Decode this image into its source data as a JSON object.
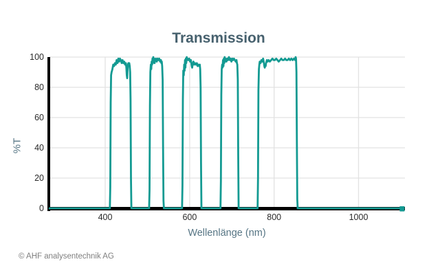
{
  "title": "Transmission",
  "y_axis_label": "%T",
  "x_axis_label": "Wellenlänge (nm)",
  "copyright": "© AHF analysentechnik AG",
  "colors": {
    "line": "#139a92",
    "title": "#47616e",
    "axis_label": "#567584",
    "tick_label": "#2a2a2a",
    "grid": "#e2e2e2",
    "axis_line": "#000000",
    "copyright": "#7f7f7f",
    "background": "#ffffff"
  },
  "chart_data": {
    "type": "line",
    "title": "Transmission",
    "xlabel": "Wellenlänge (nm)",
    "ylabel": "%T",
    "xlim": [
      268,
      1110
    ],
    "ylim": [
      0,
      100
    ],
    "x_ticks": [
      400,
      600,
      800,
      1000
    ],
    "y_ticks": [
      0,
      20,
      40,
      60,
      80,
      100
    ],
    "grid": true,
    "legend": false,
    "bands_nm": [
      [
        413,
        461
      ],
      [
        506,
        537
      ],
      [
        584,
        627
      ],
      [
        675,
        715
      ],
      [
        763,
        854
      ]
    ],
    "series": [
      {
        "name": "Transmission",
        "color": "#139a92",
        "points": [
          [
            268,
            0
          ],
          [
            300,
            0
          ],
          [
            340,
            0
          ],
          [
            380,
            0
          ],
          [
            405,
            0
          ],
          [
            411,
            0
          ],
          [
            412,
            14
          ],
          [
            413,
            70
          ],
          [
            414,
            88
          ],
          [
            415,
            90
          ],
          [
            417,
            92
          ],
          [
            419,
            95
          ],
          [
            421,
            94
          ],
          [
            423,
            96
          ],
          [
            425,
            95
          ],
          [
            427,
            98
          ],
          [
            429,
            96
          ],
          [
            431,
            99
          ],
          [
            433,
            97
          ],
          [
            435,
            99
          ],
          [
            437,
            98
          ],
          [
            439,
            96
          ],
          [
            441,
            98
          ],
          [
            443,
            96
          ],
          [
            445,
            97
          ],
          [
            447,
            95
          ],
          [
            449,
            96
          ],
          [
            450,
            93
          ],
          [
            451,
            88
          ],
          [
            452,
            86
          ],
          [
            453,
            92
          ],
          [
            454,
            95
          ],
          [
            455,
            96
          ],
          [
            456,
            95
          ],
          [
            457,
            96
          ],
          [
            458,
            94
          ],
          [
            459,
            90
          ],
          [
            460,
            72
          ],
          [
            461,
            20
          ],
          [
            462,
            0
          ],
          [
            470,
            0
          ],
          [
            485,
            0
          ],
          [
            504,
            0
          ],
          [
            505,
            12
          ],
          [
            506,
            68
          ],
          [
            507,
            90
          ],
          [
            508,
            95
          ],
          [
            509,
            92
          ],
          [
            510,
            97
          ],
          [
            511,
            95
          ],
          [
            512,
            99
          ],
          [
            513,
            96
          ],
          [
            514,
            100
          ],
          [
            515,
            97
          ],
          [
            516,
            99
          ],
          [
            517,
            96
          ],
          [
            518,
            98
          ],
          [
            520,
            99
          ],
          [
            522,
            97
          ],
          [
            524,
            99
          ],
          [
            526,
            98
          ],
          [
            528,
            99
          ],
          [
            530,
            97
          ],
          [
            532,
            98
          ],
          [
            533,
            96
          ],
          [
            534,
            97
          ],
          [
            535,
            94
          ],
          [
            536,
            85
          ],
          [
            537,
            40
          ],
          [
            538,
            5
          ],
          [
            539,
            0
          ],
          [
            550,
            0
          ],
          [
            565,
            0
          ],
          [
            582,
            0
          ],
          [
            583,
            15
          ],
          [
            584,
            72
          ],
          [
            585,
            91
          ],
          [
            586,
            88
          ],
          [
            587,
            95
          ],
          [
            588,
            91
          ],
          [
            589,
            98
          ],
          [
            590,
            93
          ],
          [
            591,
            99
          ],
          [
            592,
            96
          ],
          [
            593,
            100
          ],
          [
            594,
            98
          ],
          [
            595,
            99
          ],
          [
            597,
            98
          ],
          [
            599,
            99
          ],
          [
            601,
            97
          ],
          [
            603,
            98
          ],
          [
            605,
            94
          ],
          [
            606,
            93
          ],
          [
            607,
            95
          ],
          [
            609,
            97
          ],
          [
            611,
            95
          ],
          [
            613,
            96
          ],
          [
            615,
            95
          ],
          [
            617,
            96
          ],
          [
            619,
            94
          ],
          [
            621,
            95
          ],
          [
            623,
            94
          ],
          [
            624,
            95
          ],
          [
            625,
            92
          ],
          [
            626,
            80
          ],
          [
            627,
            30
          ],
          [
            628,
            0
          ],
          [
            640,
            0
          ],
          [
            655,
            0
          ],
          [
            673,
            0
          ],
          [
            674,
            18
          ],
          [
            675,
            75
          ],
          [
            676,
            92
          ],
          [
            677,
            95
          ],
          [
            678,
            93
          ],
          [
            679,
            98
          ],
          [
            680,
            94
          ],
          [
            681,
            99
          ],
          [
            682,
            96
          ],
          [
            683,
            100
          ],
          [
            684,
            97
          ],
          [
            685,
            99
          ],
          [
            687,
            97
          ],
          [
            689,
            99
          ],
          [
            691,
            98
          ],
          [
            693,
            100
          ],
          [
            695,
            98
          ],
          [
            697,
            99
          ],
          [
            699,
            97
          ],
          [
            701,
            99
          ],
          [
            703,
            98
          ],
          [
            705,
            99
          ],
          [
            707,
            98
          ],
          [
            709,
            97
          ],
          [
            711,
            98
          ],
          [
            712,
            96
          ],
          [
            713,
            95
          ],
          [
            714,
            85
          ],
          [
            715,
            35
          ],
          [
            716,
            0
          ],
          [
            728,
            0
          ],
          [
            745,
            0
          ],
          [
            761,
            0
          ],
          [
            762,
            20
          ],
          [
            763,
            78
          ],
          [
            764,
            92
          ],
          [
            765,
            95
          ],
          [
            766,
            97
          ],
          [
            768,
            96
          ],
          [
            770,
            98
          ],
          [
            772,
            97
          ],
          [
            774,
            99
          ],
          [
            776,
            96
          ],
          [
            777,
            94
          ],
          [
            778,
            93
          ],
          [
            779,
            95
          ],
          [
            780,
            94
          ],
          [
            781,
            96
          ],
          [
            783,
            98
          ],
          [
            785,
            97
          ],
          [
            787,
            98
          ],
          [
            790,
            97
          ],
          [
            793,
            98
          ],
          [
            796,
            99
          ],
          [
            799,
            98
          ],
          [
            802,
            98
          ],
          [
            805,
            99
          ],
          [
            808,
            98
          ],
          [
            811,
            97
          ],
          [
            814,
            98
          ],
          [
            817,
            99
          ],
          [
            820,
            98
          ],
          [
            823,
            98
          ],
          [
            826,
            99
          ],
          [
            829,
            98
          ],
          [
            832,
            98
          ],
          [
            835,
            99
          ],
          [
            838,
            98
          ],
          [
            841,
            99
          ],
          [
            844,
            98
          ],
          [
            847,
            99
          ],
          [
            850,
            98
          ],
          [
            851,
            100
          ],
          [
            852,
            99
          ],
          [
            853,
            90
          ],
          [
            854,
            45
          ],
          [
            855,
            6
          ],
          [
            856,
            0
          ],
          [
            880,
            0
          ],
          [
            910,
            0
          ],
          [
            940,
            0
          ],
          [
            970,
            0
          ],
          [
            1000,
            0
          ],
          [
            1030,
            0
          ],
          [
            1060,
            0
          ],
          [
            1085,
            0
          ],
          [
            1100,
            0
          ]
        ]
      }
    ]
  }
}
